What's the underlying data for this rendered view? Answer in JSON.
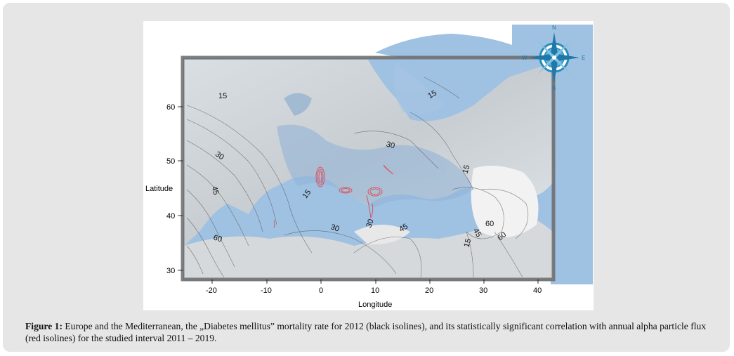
{
  "figure": {
    "x_axis": {
      "label": "Longitude",
      "ticks": [
        "-20",
        "-10",
        "0",
        "10",
        "20",
        "30",
        "40"
      ]
    },
    "y_axis": {
      "label": "Latitude",
      "ticks": [
        "30",
        "40",
        "50",
        "60"
      ]
    },
    "compass": {
      "icon": "compass-rose-icon",
      "letters": [
        "N",
        "E",
        "S",
        "W"
      ]
    },
    "isoline_labels": [
      "15",
      "15",
      "30",
      "15",
      "45",
      "15",
      "60",
      "30",
      "30",
      "45",
      "60",
      "15",
      "30",
      "45",
      "60"
    ],
    "colors": {
      "sea": "#8fb7de",
      "land_shade": "#d9d9d9",
      "black_isolines": "#333333",
      "red_isolines": "#d9535f",
      "frame": "#555555"
    }
  },
  "caption": {
    "label": "Figure 1:",
    "text": " Europe and the Mediterranean, the „Diabetes mellitus” mortality rate for 2012 (black isolines), and its statistically significant correlation with annual alpha particle flux (red isolines) for the studied interval 2011 – 2019."
  }
}
